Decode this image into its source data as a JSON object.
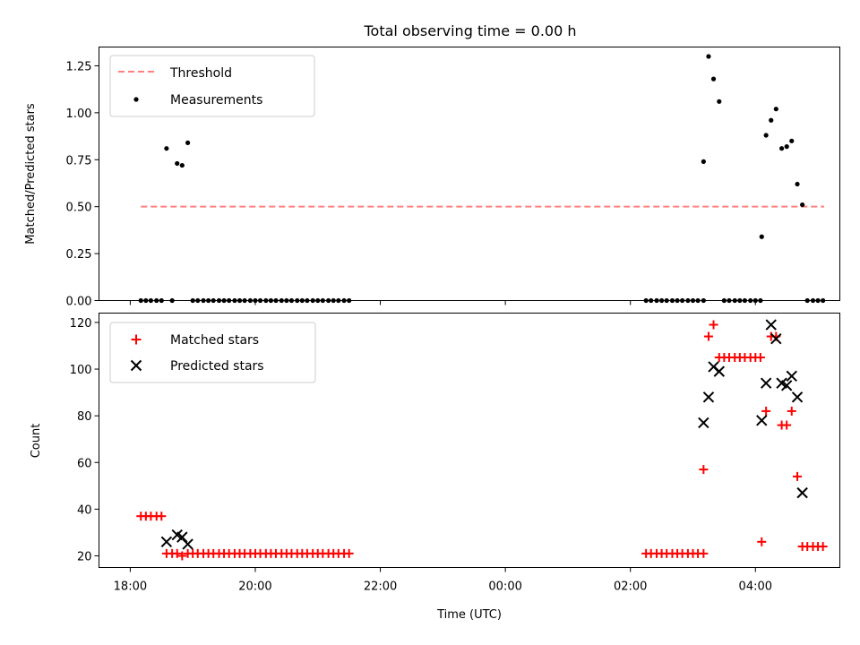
{
  "title": "Total observing time = 0.00 h",
  "colors": {
    "threshold": "#ff8080",
    "measurement": "#000000",
    "matched": "#ff0000",
    "predicted": "#000000",
    "axes": "#000000",
    "legend_border": "#cccccc"
  },
  "chart_data": [
    {
      "type": "scatter",
      "panel": "top",
      "xlabel": "",
      "ylabel": "Matched/Predicted stars",
      "xlim_hours": [
        17.5,
        29.35
      ],
      "ylim": [
        0,
        1.35
      ],
      "y_ticks": [
        "0.00",
        "0.25",
        "0.50",
        "0.75",
        "1.00",
        "1.25"
      ],
      "y_tick_values": [
        0,
        0.25,
        0.5,
        0.75,
        1.0,
        1.25
      ],
      "legend": {
        "placement": "top-left",
        "entries": [
          "Threshold",
          "Measurements"
        ]
      },
      "threshold": {
        "name": "Threshold",
        "y": 0.5,
        "x_range_hours": [
          18.17,
          29.1
        ]
      },
      "series": [
        {
          "name": "Measurements",
          "marker": "dot",
          "x_hours": [
            18.17,
            18.25,
            18.33,
            18.42,
            18.5,
            18.58,
            18.67,
            18.75,
            18.83,
            18.92,
            19.0,
            19.08,
            19.17,
            19.25,
            19.33,
            19.42,
            19.5,
            19.58,
            19.67,
            19.75,
            19.83,
            19.92,
            20.0,
            20.08,
            20.17,
            20.25,
            20.33,
            20.42,
            20.5,
            20.58,
            20.67,
            20.75,
            20.83,
            20.92,
            21.0,
            21.08,
            21.17,
            21.25,
            21.33,
            21.42,
            21.5,
            26.25,
            26.33,
            26.42,
            26.5,
            26.58,
            26.67,
            26.75,
            26.83,
            26.92,
            27.0,
            27.08,
            27.17,
            27.17,
            27.25,
            27.33,
            27.42,
            27.5,
            27.58,
            27.67,
            27.75,
            27.83,
            27.92,
            28.0,
            28.08,
            28.1,
            28.17,
            28.25,
            28.33,
            28.42,
            28.5,
            28.58,
            28.67,
            28.75,
            28.83,
            28.92,
            29.0,
            29.08
          ],
          "y": [
            0,
            0,
            0,
            0,
            0,
            0.81,
            0,
            0.73,
            0.72,
            0.84,
            0,
            0,
            0,
            0,
            0,
            0,
            0,
            0,
            0,
            0,
            0,
            0,
            0,
            0,
            0,
            0,
            0,
            0,
            0,
            0,
            0,
            0,
            0,
            0,
            0,
            0,
            0,
            0,
            0,
            0,
            0,
            0,
            0,
            0,
            0,
            0,
            0,
            0,
            0,
            0,
            0,
            0,
            0,
            0.74,
            1.3,
            1.18,
            1.06,
            0,
            0,
            0,
            0,
            0,
            0,
            0,
            0,
            0.34,
            0.88,
            0.96,
            1.02,
            0.81,
            0.82,
            0.85,
            0.62,
            0.51,
            0,
            0,
            0,
            0
          ]
        }
      ]
    },
    {
      "type": "scatter",
      "panel": "bottom",
      "xlabel": "Time (UTC)",
      "ylabel": "Count",
      "xlim_hours": [
        17.5,
        29.35
      ],
      "ylim": [
        15,
        124
      ],
      "x_ticks": [
        "18:00",
        "20:00",
        "22:00",
        "00:00",
        "02:00",
        "04:00"
      ],
      "x_tick_hours": [
        18,
        20,
        22,
        24,
        26,
        28
      ],
      "y_ticks": [
        "20",
        "40",
        "60",
        "80",
        "100",
        "120"
      ],
      "y_tick_values": [
        20,
        40,
        60,
        80,
        100,
        120
      ],
      "legend": {
        "placement": "top-left",
        "entries": [
          "Matched stars",
          "Predicted stars"
        ]
      },
      "series": [
        {
          "name": "Matched stars",
          "marker": "plus",
          "x_hours": [
            18.17,
            18.25,
            18.33,
            18.42,
            18.5,
            18.58,
            18.67,
            18.75,
            18.83,
            18.92,
            19.0,
            19.08,
            19.17,
            19.25,
            19.33,
            19.42,
            19.5,
            19.58,
            19.67,
            19.75,
            19.83,
            19.92,
            20.0,
            20.08,
            20.17,
            20.25,
            20.33,
            20.42,
            20.5,
            20.58,
            20.67,
            20.75,
            20.83,
            20.92,
            21.0,
            21.08,
            21.17,
            21.25,
            21.33,
            21.42,
            21.5,
            26.25,
            26.33,
            26.42,
            26.5,
            26.58,
            26.67,
            26.75,
            26.83,
            26.92,
            27.0,
            27.08,
            27.17,
            27.17,
            27.25,
            27.33,
            27.42,
            27.5,
            27.58,
            27.67,
            27.75,
            27.83,
            27.92,
            28.0,
            28.08,
            28.1,
            28.17,
            28.25,
            28.33,
            28.42,
            28.5,
            28.58,
            28.67,
            28.75,
            28.83,
            28.92,
            29.0,
            29.08
          ],
          "y": [
            37,
            37,
            37,
            37,
            37,
            21,
            21,
            21,
            20,
            21,
            21,
            21,
            21,
            21,
            21,
            21,
            21,
            21,
            21,
            21,
            21,
            21,
            21,
            21,
            21,
            21,
            21,
            21,
            21,
            21,
            21,
            21,
            21,
            21,
            21,
            21,
            21,
            21,
            21,
            21,
            21,
            21,
            21,
            21,
            21,
            21,
            21,
            21,
            21,
            21,
            21,
            21,
            21,
            57,
            114,
            119,
            105,
            105,
            105,
            105,
            105,
            105,
            105,
            105,
            105,
            26,
            82,
            114,
            114,
            76,
            76,
            82,
            54,
            24,
            24,
            24,
            24,
            24
          ]
        },
        {
          "name": "Predicted stars",
          "marker": "x",
          "x_hours": [
            18.58,
            18.75,
            18.83,
            18.92,
            27.17,
            27.25,
            27.33,
            27.42,
            28.1,
            28.17,
            28.25,
            28.33,
            28.42,
            28.5,
            28.58,
            28.67,
            28.75
          ],
          "y": [
            26,
            29,
            28,
            25,
            77,
            88,
            101,
            99,
            78,
            94,
            119,
            113,
            94,
            93,
            97,
            88,
            47
          ]
        }
      ]
    }
  ]
}
